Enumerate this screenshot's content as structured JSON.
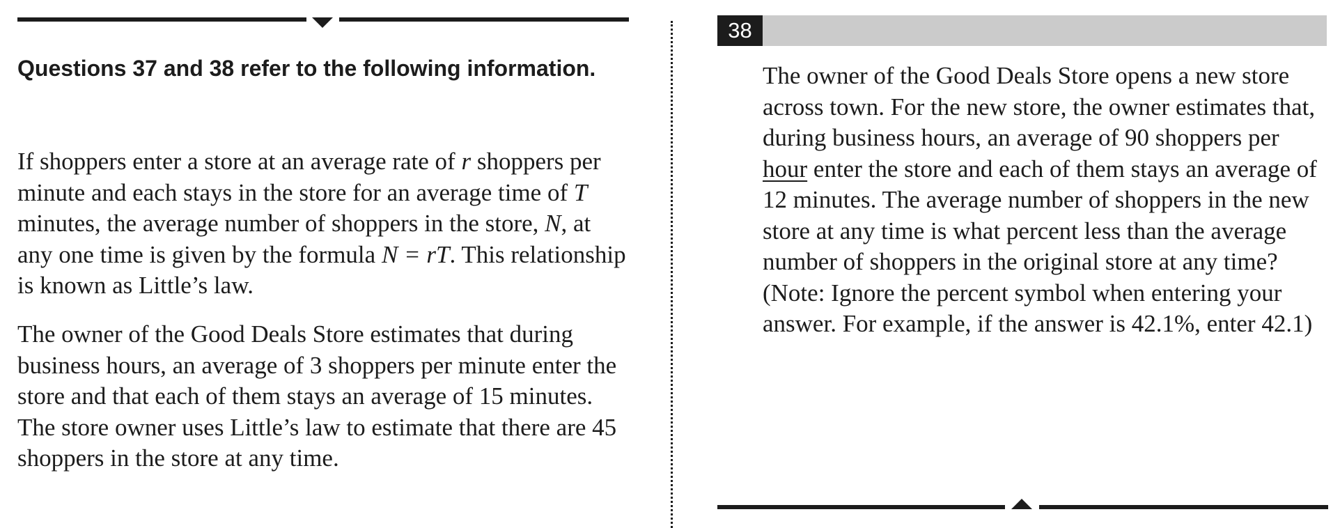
{
  "left": {
    "heading": "Questions 37 and 38 refer to the following information.",
    "para1": {
      "t1": "If shoppers enter a store at an average rate of ",
      "var_r": "r",
      "t2": " shoppers per minute and each stays in the store for an average time of ",
      "var_T": "T",
      "t3": " minutes, the average number of shoppers in the store, ",
      "var_N": "N",
      "t4": ", at any one time is given by the formula ",
      "formula": "N = rT",
      "t5": ". This relationship is known as Little’s law."
    },
    "para2": "The owner of the Good Deals Store estimates that during business hours, an average of 3 shoppers per minute enter the store and that each of them stays an average of 15 minutes. The store owner uses Little’s law to estimate that there are 45 shoppers in the store at any time."
  },
  "right": {
    "question_number": "38",
    "q1": "The owner of the Good Deals Store opens a new store across town. For the new store, the owner estimates that, during business hours, an average of 90 shoppers per ",
    "q_underlined": "hour",
    "q2": " enter the store and each of them stays an average of 12 minutes. The average number of shoppers in the new store at any time is what percent less than the average number of shoppers in the original store at any time? (Note: Ignore the percent symbol when entering your answer. For example, if the answer is 42.1%, enter 42.1)"
  },
  "icons": {
    "top_marker": "triangle-down-icon",
    "bottom_marker": "triangle-up-icon"
  }
}
